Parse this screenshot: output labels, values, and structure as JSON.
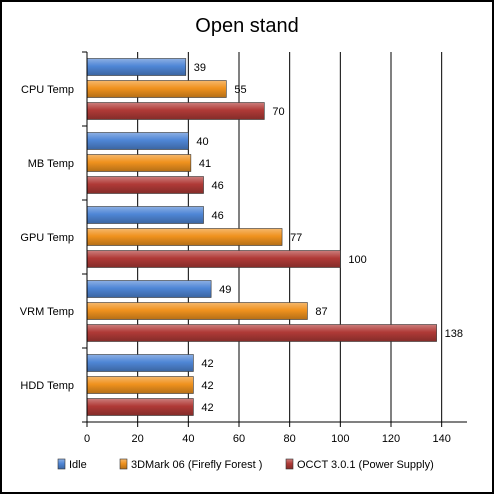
{
  "chart_data": {
    "type": "bar",
    "orientation": "horizontal",
    "title": "Open stand",
    "xlabel": "",
    "ylabel": "",
    "categories": [
      "CPU Temp",
      "MB Temp",
      "GPU Temp",
      "VRM Temp",
      "HDD Temp"
    ],
    "series": [
      {
        "name": "Idle",
        "color": "#4f86d6",
        "values": [
          39,
          40,
          46,
          49,
          42
        ]
      },
      {
        "name": "3DMark 06 (Firefly Forest )",
        "color": "#f0921e",
        "values": [
          55,
          41,
          77,
          87,
          42
        ]
      },
      {
        "name": "OCCT 3.0.1 (Power Supply)",
        "color": "#b03a37",
        "values": [
          70,
          46,
          100,
          138,
          42
        ]
      }
    ],
    "xlim": [
      0,
      150
    ],
    "xticks": [
      0,
      20,
      40,
      60,
      80,
      100,
      120,
      140
    ],
    "grid": true,
    "data_labels": true,
    "legend_position": "bottom"
  }
}
